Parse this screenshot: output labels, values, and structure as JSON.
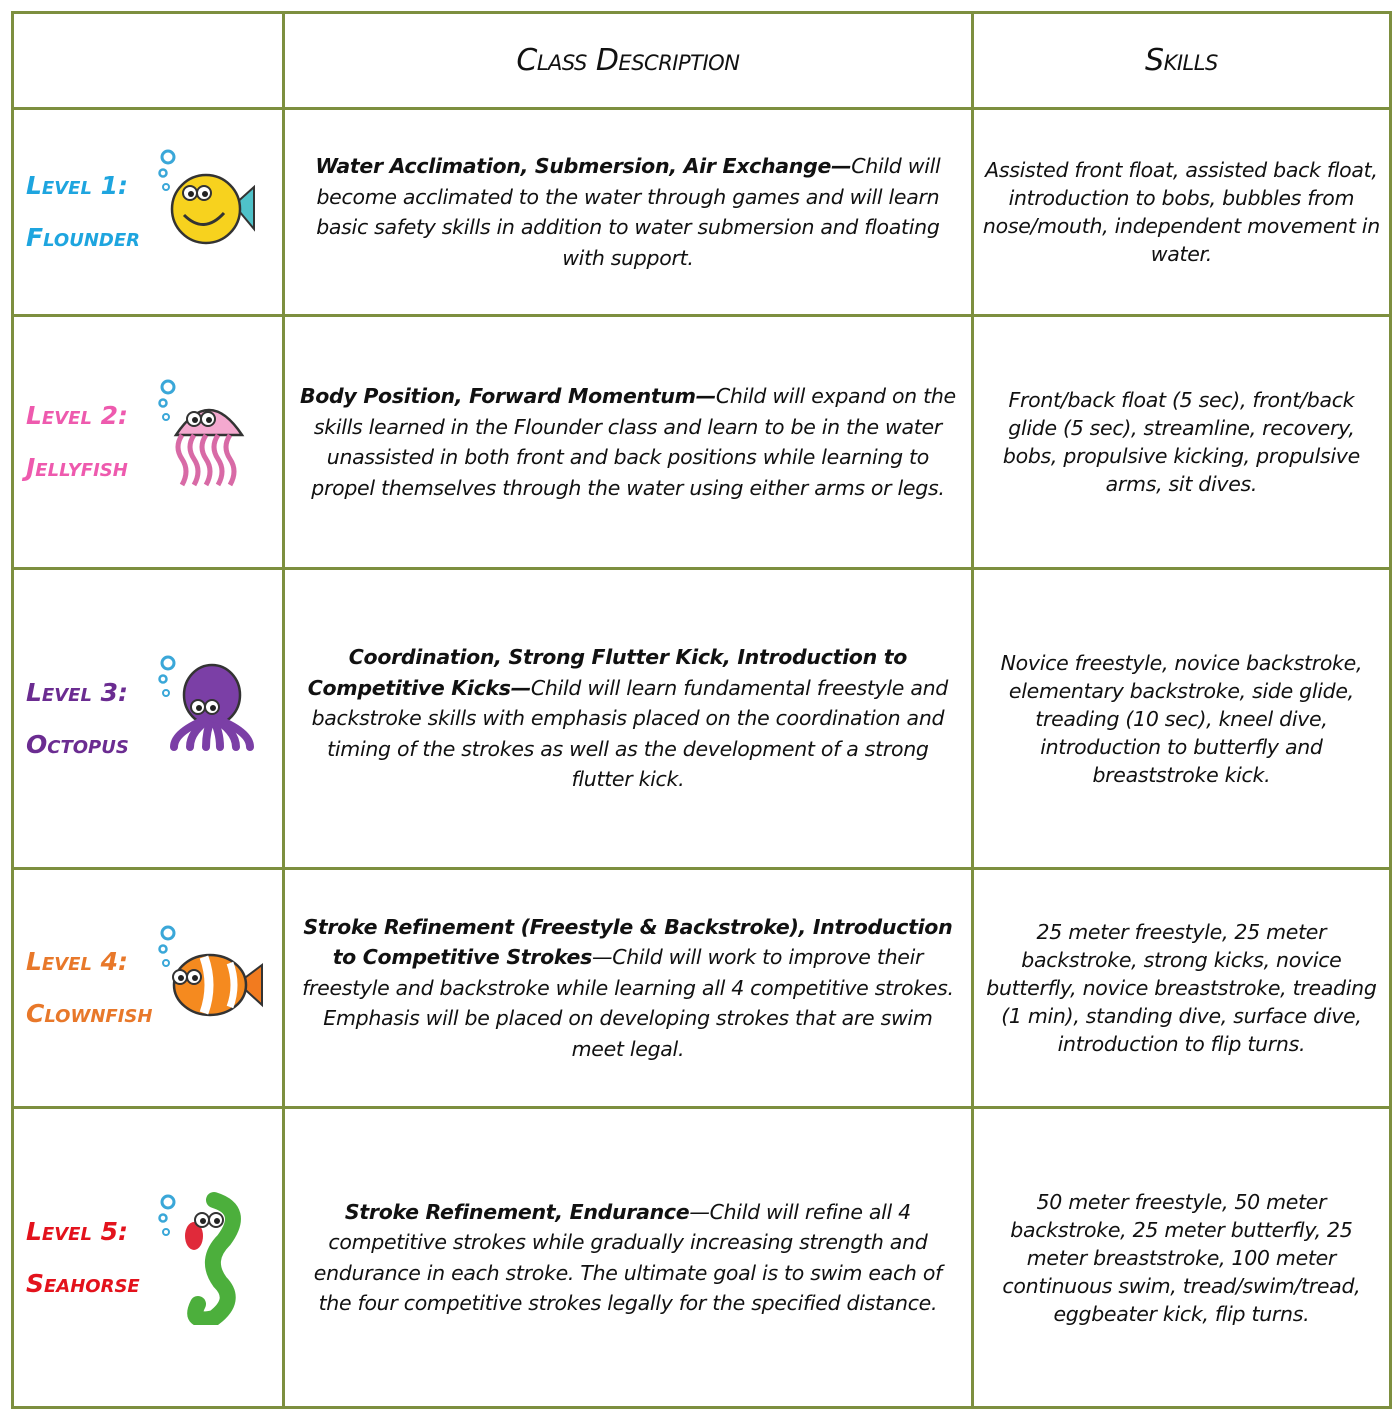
{
  "header": {
    "description": "Class Description",
    "skills": "Skills"
  },
  "rows": [
    {
      "level": "Level 1:",
      "name": "Flounder",
      "lead": "Water Acclimation, Submersion, Air Exchange—",
      "description": "Child will become acclimated to the water through games and will learn basic safety skills in addition to water submersion and floating with support.",
      "skills": "Assisted front float, assisted back float, introduction to bobs, bubbles from nose/mouth, independent movement in water."
    },
    {
      "level": "Level 2:",
      "name": "Jellyfish",
      "lead": "Body Position, Forward Momentum—",
      "description": "Child will expand on the skills learned in the Flounder class and learn to be in the water unassisted in both front and back positions while learning to propel themselves through the water using either arms or legs.",
      "skills": "Front/back float (5 sec), front/back glide (5 sec), streamline, recovery, bobs, propulsive kicking, propulsive arms, sit dives."
    },
    {
      "level": "Level 3:",
      "name": "Octopus",
      "lead": "Coordination, Strong Flutter Kick, Introduction to Competitive Kicks—",
      "description": "Child will learn fundamental freestyle and backstroke skills with emphasis placed on the coordination and timing of the strokes as well as the development of a strong flutter kick.",
      "skills": "Novice freestyle, novice backstroke, elementary backstroke, side glide, treading (10 sec), kneel dive, introduction to butterfly and breaststroke kick."
    },
    {
      "level": "Level 4:",
      "name": "Clownfish",
      "lead": "Stroke Refinement (Freestyle & Backstroke), Introduction to Competitive Strokes",
      "description": "—Child will work to improve their freestyle and backstroke while learning all 4 competitive strokes. Emphasis will be placed on developing strokes that are swim meet legal.",
      "skills": "25 meter freestyle, 25 meter backstroke, strong kicks, novice butterfly, novice breaststroke, treading (1 min), standing dive, surface dive, introduction to flip turns."
    },
    {
      "level": "Level 5:",
      "name": "Seahorse",
      "lead": "Stroke Refinement, Endurance",
      "description": "—Child will refine all 4 competitive strokes while gradually increasing strength and endurance in each stroke. The ultimate goal is to swim each of the four competitive strokes legally for the specified distance.",
      "skills": "50 meter freestyle, 50 meter backstroke, 25 meter butterfly, 25 meter breaststroke, 100 meter continuous swim, tread/swim/tread, eggbeater kick, flip turns."
    }
  ]
}
